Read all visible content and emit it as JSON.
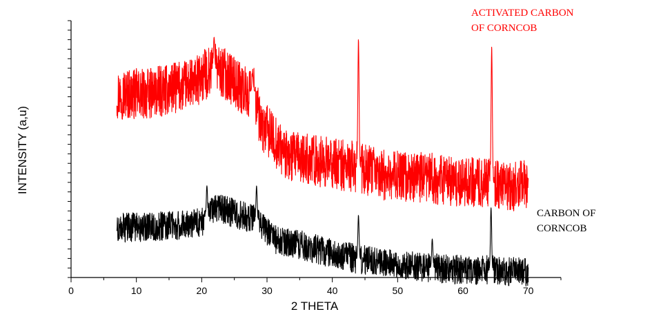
{
  "chart_data": {
    "type": "line",
    "title": "",
    "xlabel": "2 THETA",
    "ylabel": "INTENSITY (a,u)",
    "xlim": [
      0,
      75
    ],
    "x_ticks": [
      "0",
      "10",
      "20",
      "30",
      "40",
      "50",
      "60",
      "70"
    ],
    "y_tick_labels": false,
    "grid": false,
    "series": [
      {
        "name": "ACTIVATED CARBON OF CORNCOB",
        "color": "#ff0000",
        "legend_lines": [
          "ACTIVATED CARBON",
          "OF CORNCOB"
        ],
        "legend_placement": "top-right",
        "profile": [
          [
            7,
            100
          ],
          [
            12,
            100
          ],
          [
            19,
            106
          ],
          [
            21,
            112
          ],
          [
            22,
            114
          ],
          [
            24,
            110
          ],
          [
            27,
            100
          ],
          [
            28,
            102
          ],
          [
            29,
            82
          ],
          [
            30,
            80
          ],
          [
            33,
            66
          ],
          [
            37,
            64
          ],
          [
            40,
            62
          ],
          [
            44,
            60
          ],
          [
            48,
            56
          ],
          [
            55,
            54
          ],
          [
            60,
            52
          ],
          [
            64,
            52
          ],
          [
            66,
            50
          ],
          [
            70,
            50
          ]
        ],
        "noise": 14,
        "peaks": [
          [
            21.9,
            131
          ],
          [
            27.8,
            112
          ],
          [
            44.0,
            130
          ],
          [
            64.4,
            126
          ]
        ]
      },
      {
        "name": "CARBON OF CORNCOB",
        "color": "#000000",
        "legend_lines": [
          "CARBON OF",
          "CORNCOB"
        ],
        "legend_placement": "right",
        "profile": [
          [
            7,
            27
          ],
          [
            15,
            28
          ],
          [
            20,
            30
          ],
          [
            22,
            38
          ],
          [
            26,
            34
          ],
          [
            28,
            32
          ],
          [
            31,
            21
          ],
          [
            36,
            17
          ],
          [
            40,
            13
          ],
          [
            44,
            10
          ],
          [
            50,
            7
          ],
          [
            60,
            4
          ],
          [
            64,
            4
          ],
          [
            70,
            3
          ]
        ],
        "noise": 8,
        "peaks": [
          [
            20.8,
            50
          ],
          [
            28.4,
            50
          ],
          [
            44.0,
            34
          ],
          [
            55.3,
            21
          ],
          [
            64.3,
            38
          ]
        ]
      }
    ]
  }
}
